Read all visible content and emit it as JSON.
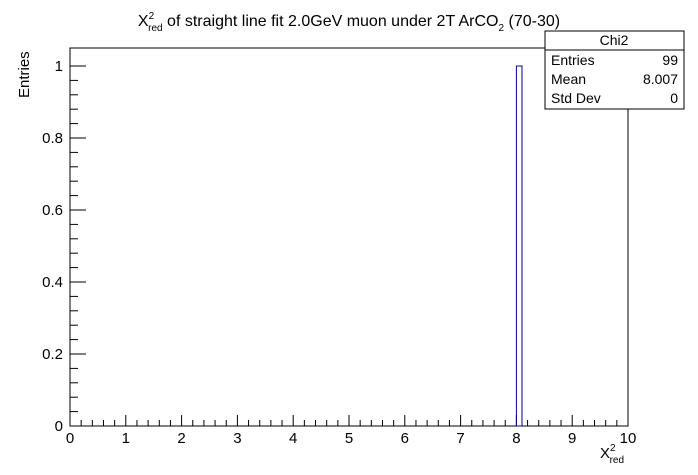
{
  "chart_data": {
    "type": "bar",
    "title_parts": {
      "symbol": "X",
      "sup": "2",
      "sub": "red",
      "middle": " of straight line fit 2.0GeV muon under 2T ArCO",
      "sub2": "2",
      "end": " (70-30)"
    },
    "xlabel_parts": {
      "symbol": "X",
      "sup": "2",
      "sub": "red"
    },
    "ylabel": "Entries",
    "xlim": [
      0,
      10
    ],
    "ylim": [
      0,
      1.05
    ],
    "x_ticks": [
      0,
      1,
      2,
      3,
      4,
      5,
      6,
      7,
      8,
      9,
      10
    ],
    "x_tick_labels": [
      "0",
      "1",
      "2",
      "3",
      "4",
      "5",
      "6",
      "7",
      "8",
      "9",
      "10"
    ],
    "y_ticks": [
      0,
      0.2,
      0.4,
      0.6,
      0.8,
      1
    ],
    "y_tick_labels": [
      "0",
      "0.2",
      "0.4",
      "0.6",
      "0.8",
      "1"
    ],
    "bin_width": 0.1,
    "bins": [
      {
        "x_low": 8.0,
        "x_high": 8.1,
        "value": 1
      }
    ],
    "bar_color": "#000099",
    "grid": false,
    "legend": "none"
  },
  "stats_box": {
    "title": "Chi2",
    "placement": "top-right",
    "rows": [
      {
        "label": "Entries",
        "value": "99"
      },
      {
        "label": "Mean",
        "value": "8.007"
      },
      {
        "label": "Std Dev",
        "value": "0"
      }
    ]
  }
}
